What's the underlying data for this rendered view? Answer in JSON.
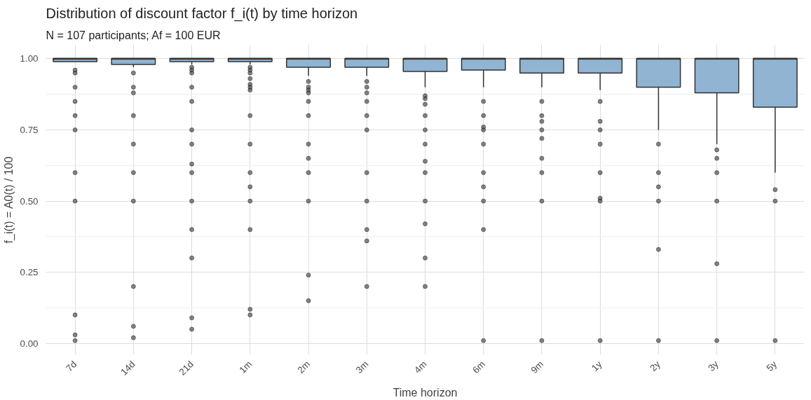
{
  "chart_data": {
    "type": "box",
    "title": "Distribution of discount factor f_i(t) by time horizon",
    "subtitle": "N = 107 participants; Af = 100 EUR",
    "xlabel": "Time horizon",
    "ylabel": "f_i(t) = A0(t) / 100",
    "categories": [
      "7d",
      "14d",
      "21d",
      "1m",
      "2m",
      "3m",
      "4m",
      "6m",
      "9m",
      "1y",
      "2y",
      "3y",
      "5y"
    ],
    "color": "#90b4d2",
    "boxes": [
      {
        "low": 0.99,
        "q1": 0.99,
        "median": 1.0,
        "q3": 1.0,
        "high": 1.0,
        "outliers": [
          0.96,
          0.95,
          0.9,
          0.85,
          0.8,
          0.75,
          0.6,
          0.5,
          0.1,
          0.03,
          0.01
        ]
      },
      {
        "low": 0.97,
        "q1": 0.98,
        "median": 1.0,
        "q3": 1.0,
        "high": 1.0,
        "outliers": [
          0.95,
          0.9,
          0.88,
          0.8,
          0.7,
          0.6,
          0.5,
          0.2,
          0.06,
          0.02
        ]
      },
      {
        "low": 0.98,
        "q1": 0.99,
        "median": 1.0,
        "q3": 1.0,
        "high": 1.0,
        "outliers": [
          0.97,
          0.96,
          0.95,
          0.9,
          0.85,
          0.75,
          0.7,
          0.63,
          0.6,
          0.5,
          0.4,
          0.3,
          0.09,
          0.05
        ]
      },
      {
        "low": 0.98,
        "q1": 0.99,
        "median": 1.0,
        "q3": 1.0,
        "high": 1.0,
        "outliers": [
          0.97,
          0.96,
          0.95,
          0.93,
          0.91,
          0.9,
          0.89,
          0.8,
          0.7,
          0.6,
          0.55,
          0.5,
          0.4,
          0.12,
          0.1
        ]
      },
      {
        "low": 0.94,
        "q1": 0.97,
        "median": 1.0,
        "q3": 1.0,
        "high": 1.0,
        "outliers": [
          0.92,
          0.9,
          0.89,
          0.88,
          0.85,
          0.8,
          0.7,
          0.65,
          0.6,
          0.5,
          0.24,
          0.15
        ]
      },
      {
        "low": 0.94,
        "q1": 0.97,
        "median": 1.0,
        "q3": 1.0,
        "high": 1.0,
        "outliers": [
          0.92,
          0.9,
          0.88,
          0.85,
          0.8,
          0.75,
          0.6,
          0.5,
          0.4,
          0.36,
          0.2
        ]
      },
      {
        "low": 0.9,
        "q1": 0.955,
        "median": 1.0,
        "q3": 1.0,
        "high": 1.0,
        "outliers": [
          0.87,
          0.86,
          0.84,
          0.8,
          0.75,
          0.7,
          0.64,
          0.6,
          0.5,
          0.42,
          0.3,
          0.2
        ]
      },
      {
        "low": 0.9,
        "q1": 0.96,
        "median": 1.0,
        "q3": 1.0,
        "high": 1.0,
        "outliers": [
          0.85,
          0.8,
          0.76,
          0.75,
          0.7,
          0.6,
          0.55,
          0.5,
          0.4,
          0.01
        ]
      },
      {
        "low": 0.9,
        "q1": 0.95,
        "median": 1.0,
        "q3": 1.0,
        "high": 1.0,
        "outliers": [
          0.85,
          0.8,
          0.78,
          0.75,
          0.72,
          0.65,
          0.6,
          0.5,
          0.01
        ]
      },
      {
        "low": 0.89,
        "q1": 0.95,
        "median": 1.0,
        "q3": 1.0,
        "high": 1.0,
        "outliers": [
          0.85,
          0.78,
          0.75,
          0.7,
          0.6,
          0.51,
          0.5,
          0.01
        ]
      },
      {
        "low": 0.75,
        "q1": 0.9,
        "median": 1.0,
        "q3": 1.0,
        "high": 1.0,
        "outliers": [
          0.7,
          0.6,
          0.55,
          0.5,
          0.33,
          0.01
        ]
      },
      {
        "low": 0.7,
        "q1": 0.88,
        "median": 1.0,
        "q3": 1.0,
        "high": 1.0,
        "outliers": [
          0.68,
          0.65,
          0.6,
          0.5,
          0.28,
          0.01
        ]
      },
      {
        "low": 0.6,
        "q1": 0.83,
        "median": 1.0,
        "q3": 1.0,
        "high": 1.0,
        "outliers": [
          0.54,
          0.5,
          0.01
        ]
      }
    ],
    "ylim": [
      -0.04,
      1.05
    ],
    "yticks": [
      {
        "value": 0,
        "label": "0.00"
      },
      {
        "value": 0.25,
        "label": "0.25"
      },
      {
        "value": 0.5,
        "label": "0.50"
      },
      {
        "value": 0.75,
        "label": "0.75"
      },
      {
        "value": 1,
        "label": "1.00"
      }
    ],
    "grid": true
  }
}
